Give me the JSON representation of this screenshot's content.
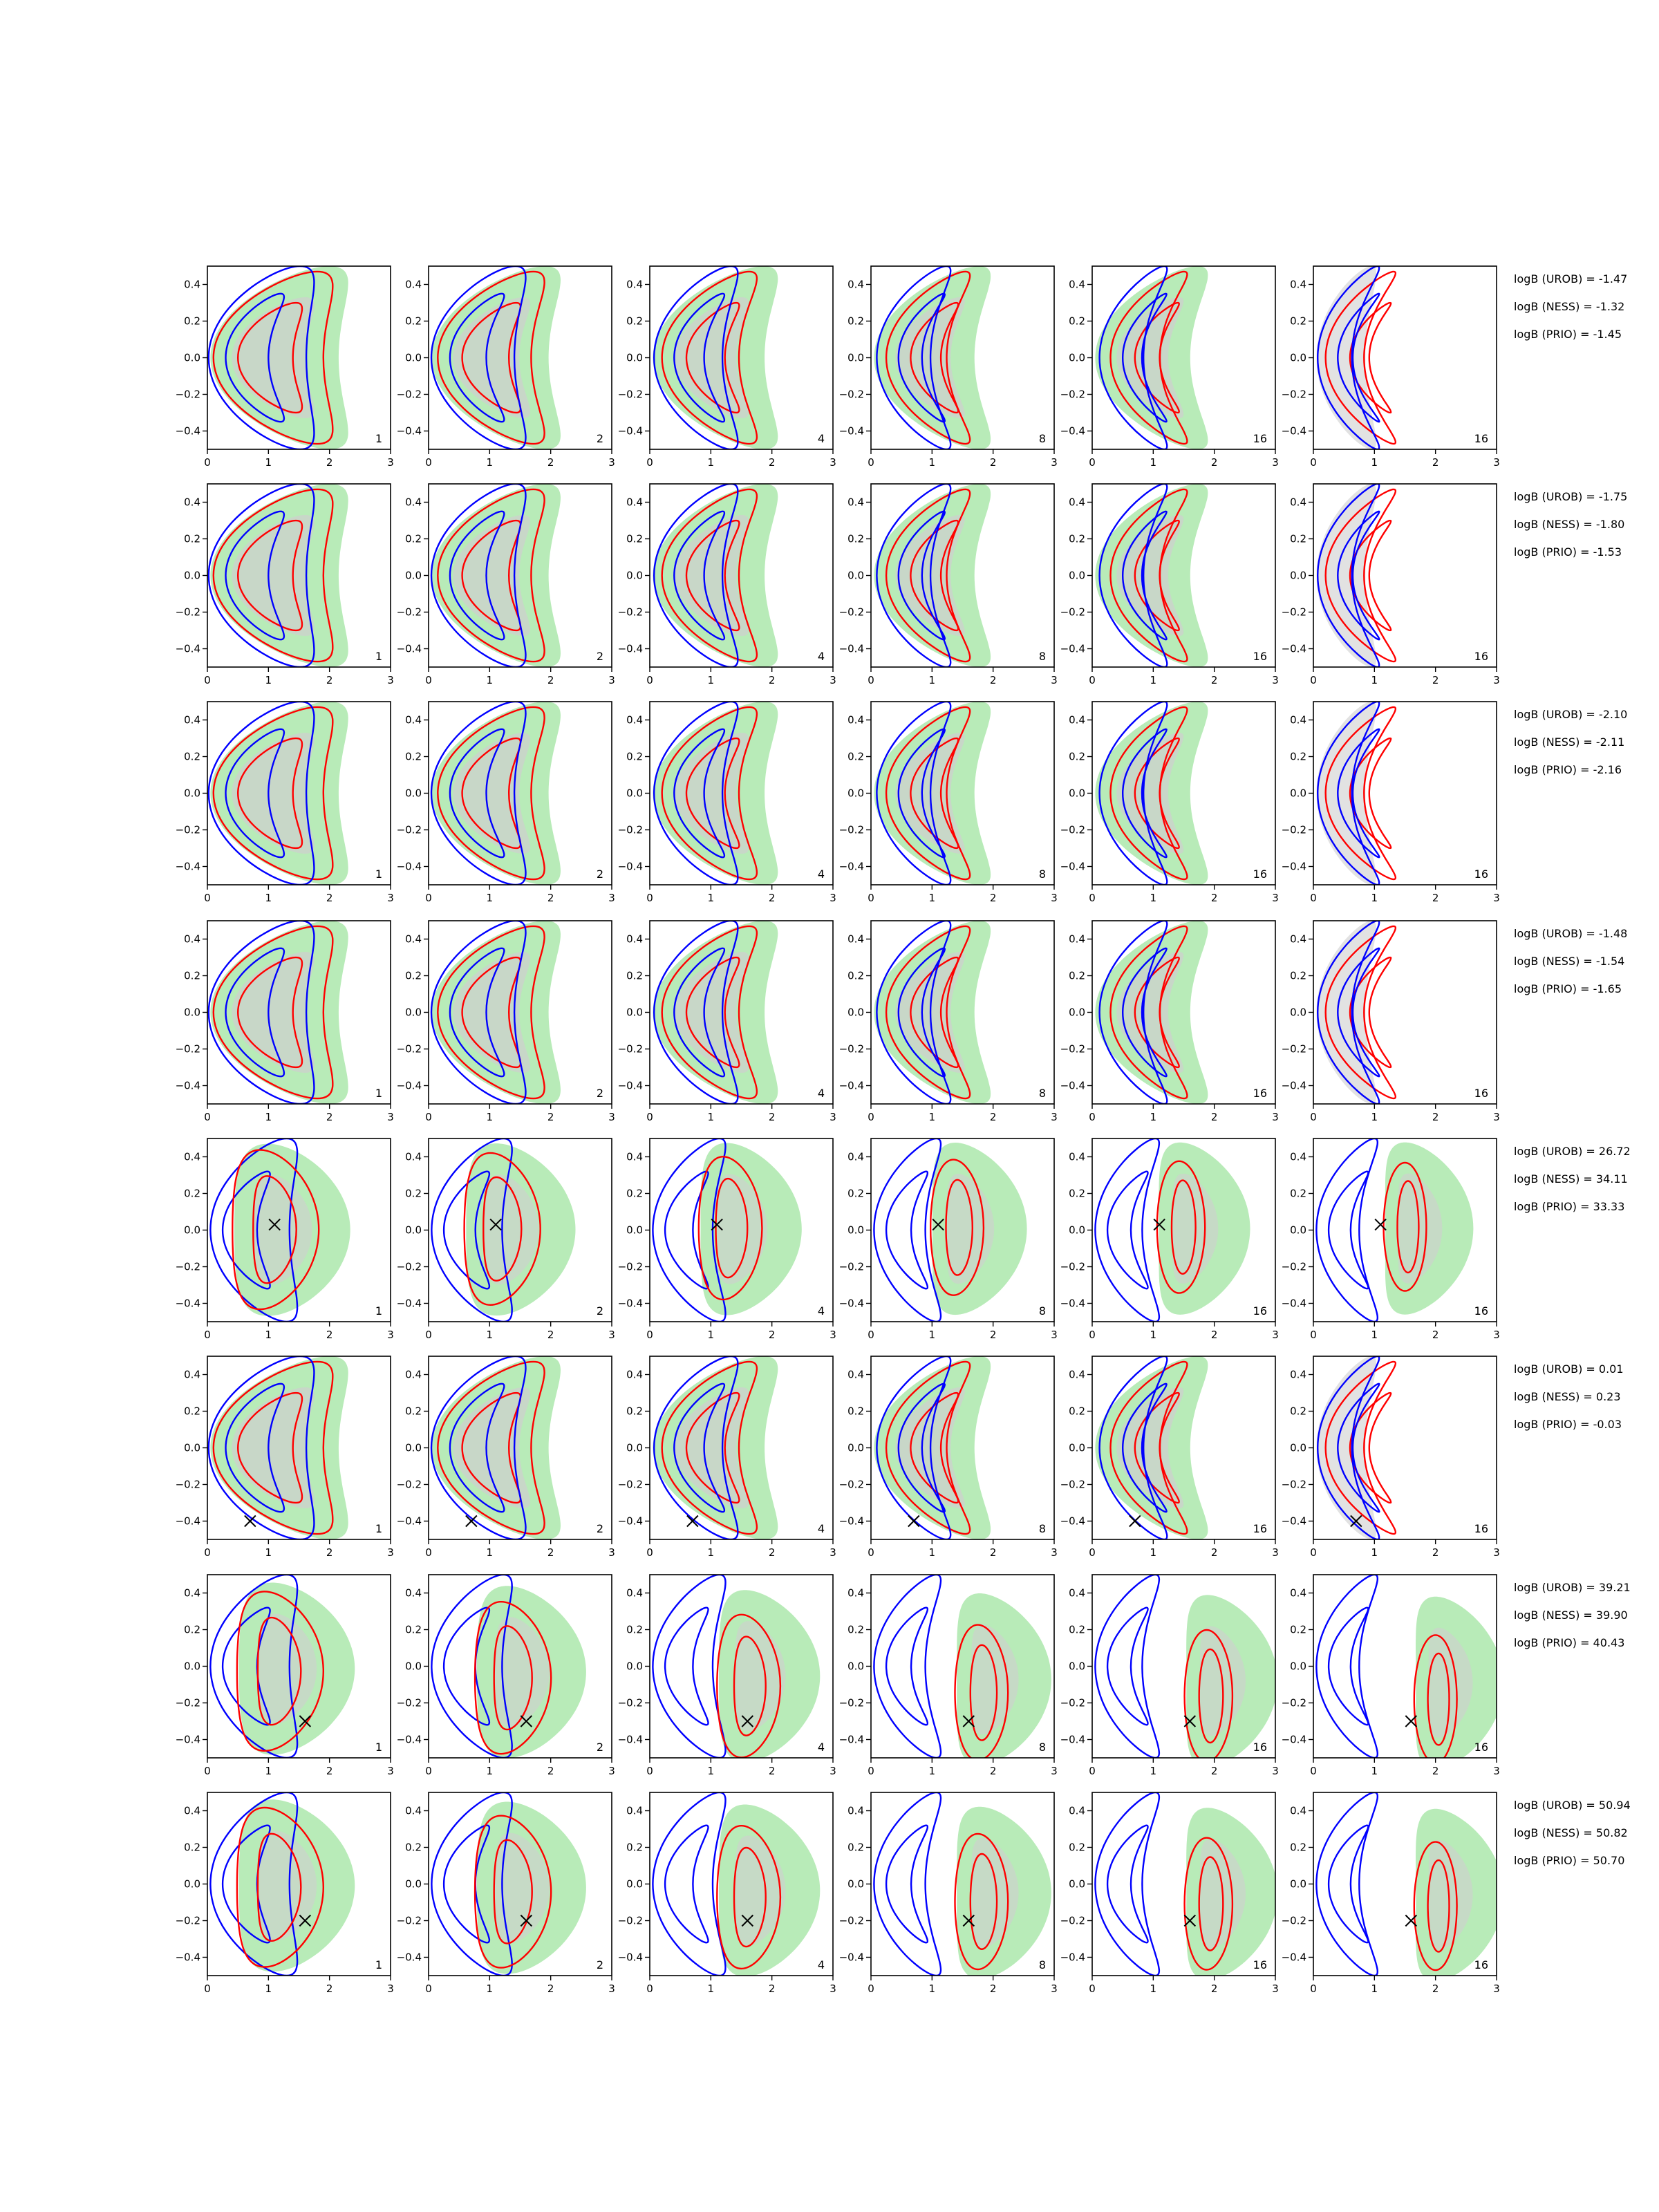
{
  "chart_data": {
    "type": "contour-grid",
    "rows": 8,
    "cols": 6,
    "xlim": [
      0,
      3
    ],
    "ylim": [
      -0.5,
      0.5
    ],
    "x_ticks": [
      "0",
      "1",
      "2",
      "3"
    ],
    "y_ticks": [
      "0.4",
      "0.2",
      "0.0",
      "−0.2",
      "−0.4"
    ],
    "panel_labels": [
      "1",
      "2",
      "4",
      "8",
      "16",
      "16"
    ],
    "colors": {
      "filled_green": "#b8ebb8",
      "filled_grey": "#cfcfcf",
      "contour_blue": "#0000ff",
      "contour_red": "#ff0000",
      "marker": "#000000"
    },
    "rows_data": [
      {
        "marker": null,
        "logB": [
          "logB (UROB) = -1.47",
          "logB (NESS) = -1.32",
          "logB (PRIO) = -1.45"
        ]
      },
      {
        "marker": null,
        "logB": [
          "logB (UROB) = -1.75",
          "logB (NESS) = -1.80",
          "logB (PRIO) = -1.53"
        ]
      },
      {
        "marker": null,
        "logB": [
          "logB (UROB) = -2.10",
          "logB (NESS) = -2.11",
          "logB (PRIO) = -2.16"
        ]
      },
      {
        "marker": null,
        "logB": [
          "logB (UROB) = -1.48",
          "logB (NESS) = -1.54",
          "logB (PRIO) = -1.65"
        ]
      },
      {
        "marker": {
          "x": 1.1,
          "y": 0.03
        },
        "logB": [
          "logB (UROB) = 26.72",
          "logB (NESS) = 34.11",
          "logB (PRIO) = 33.33"
        ]
      },
      {
        "marker": {
          "x": 0.7,
          "y": -0.4
        },
        "logB": [
          "logB (UROB) = 0.01",
          "logB (NESS) = 0.23",
          "logB (PRIO) = -0.03"
        ]
      },
      {
        "marker": {
          "x": 1.6,
          "y": -0.3
        },
        "logB": [
          "logB (UROB) = 39.21",
          "logB (NESS) = 39.90",
          "logB (PRIO) = 40.43"
        ]
      },
      {
        "marker": {
          "x": 1.6,
          "y": -0.2
        },
        "logB": [
          "logB (UROB) = 50.94",
          "logB (NESS) = 50.82",
          "logB (PRIO) = 50.70"
        ]
      }
    ]
  }
}
